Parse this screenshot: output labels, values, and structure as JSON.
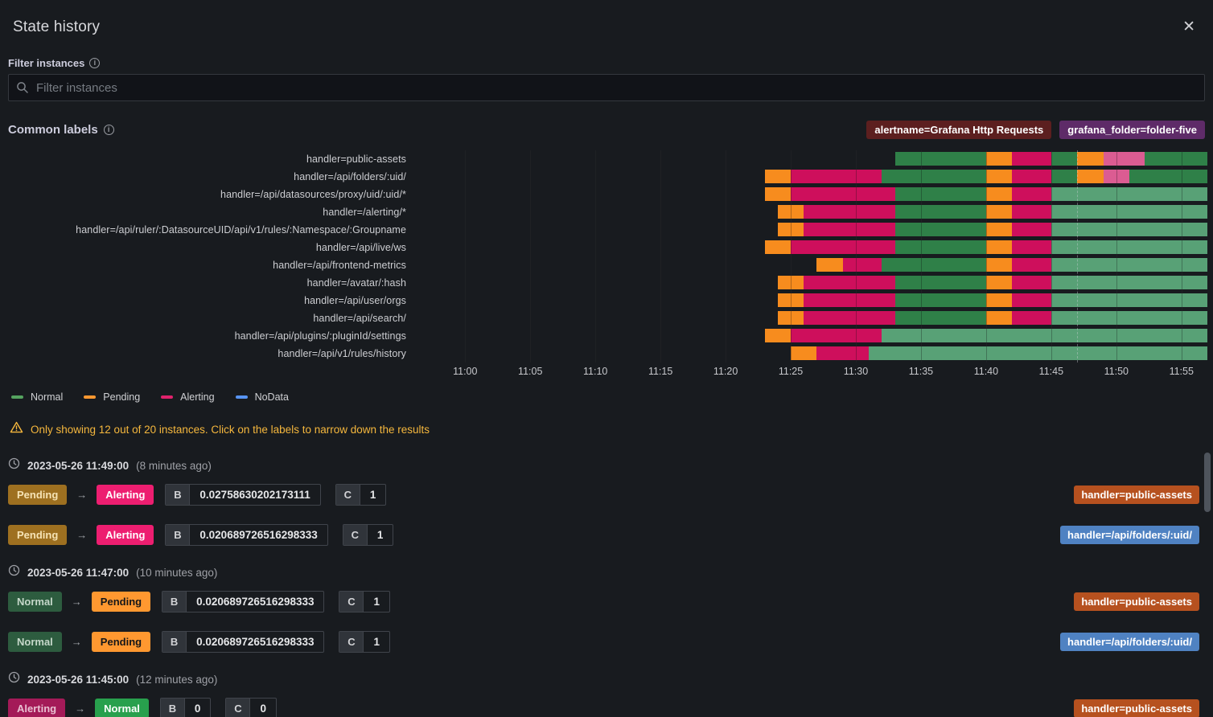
{
  "header": {
    "title": "State history",
    "close_glyph": "✕"
  },
  "filter": {
    "label": "Filter instances",
    "placeholder": "Filter instances"
  },
  "common_labels": {
    "label": "Common labels",
    "badges": [
      {
        "text": "alertname=Grafana Http Requests",
        "bg": "#5C1F1F"
      },
      {
        "text": "grafana_folder=folder-five",
        "bg": "#5E2B68"
      }
    ]
  },
  "chart_data": {
    "type": "state-timeline",
    "x_base_time": "11:00",
    "x_domain_minutes": [
      -3.6,
      57.3
    ],
    "grid": true,
    "marker_minute": 47.0,
    "ticks": [
      {
        "m": 0,
        "label": "11:00"
      },
      {
        "m": 5,
        "label": "11:05"
      },
      {
        "m": 10,
        "label": "11:10"
      },
      {
        "m": 15,
        "label": "11:15"
      },
      {
        "m": 20,
        "label": "11:20"
      },
      {
        "m": 25,
        "label": "11:25"
      },
      {
        "m": 30,
        "label": "11:30"
      },
      {
        "m": 35,
        "label": "11:35"
      },
      {
        "m": 40,
        "label": "11:40"
      },
      {
        "m": 45,
        "label": "11:45"
      },
      {
        "m": 50,
        "label": "11:50"
      },
      {
        "m": 55,
        "label": "11:55"
      }
    ],
    "states": {
      "normal": {
        "label": "Normal",
        "color": "#2F8048"
      },
      "normal_light": {
        "label": "Normal",
        "color": "#58A176"
      },
      "pending": {
        "label": "Pending",
        "color": "#F78C1E"
      },
      "alerting": {
        "label": "Alerting",
        "color": "#CE0F5C"
      },
      "alerting_light": {
        "label": "Alerting",
        "color": "#DB5C92"
      },
      "nodata": {
        "label": "NoData",
        "color": "#5794F2"
      }
    },
    "rows": [
      {
        "label": "handler=public-assets",
        "segments": [
          [
            33,
            40,
            "normal"
          ],
          [
            40,
            42,
            "pending"
          ],
          [
            42,
            45,
            "alerting"
          ],
          [
            45,
            47,
            "normal"
          ],
          [
            47,
            49,
            "pending"
          ],
          [
            49,
            52.2,
            "alerting_light"
          ],
          [
            52.2,
            57,
            "normal"
          ]
        ]
      },
      {
        "label": "handler=/api/folders/:uid/",
        "segments": [
          [
            23,
            25,
            "pending"
          ],
          [
            25,
            32,
            "alerting"
          ],
          [
            32,
            40,
            "normal"
          ],
          [
            40,
            42,
            "pending"
          ],
          [
            42,
            45,
            "alerting"
          ],
          [
            45,
            47,
            "normal"
          ],
          [
            47,
            49,
            "pending"
          ],
          [
            49,
            51,
            "alerting_light"
          ],
          [
            51,
            57,
            "normal"
          ]
        ]
      },
      {
        "label": "handler=/api/datasources/proxy/uid/:uid/*",
        "segments": [
          [
            23,
            25,
            "pending"
          ],
          [
            25,
            33,
            "alerting"
          ],
          [
            33,
            40,
            "normal"
          ],
          [
            40,
            42,
            "pending"
          ],
          [
            42,
            45,
            "alerting"
          ],
          [
            45,
            57,
            "normal_light"
          ]
        ]
      },
      {
        "label": "handler=/alerting/*",
        "segments": [
          [
            24,
            26,
            "pending"
          ],
          [
            26,
            33,
            "alerting"
          ],
          [
            33,
            40,
            "normal"
          ],
          [
            40,
            42,
            "pending"
          ],
          [
            42,
            45,
            "alerting"
          ],
          [
            45,
            57,
            "normal_light"
          ]
        ]
      },
      {
        "label": "handler=/api/ruler/:DatasourceUID/api/v1/rules/:Namespace/:Groupname",
        "segments": [
          [
            24,
            26,
            "pending"
          ],
          [
            26,
            33,
            "alerting"
          ],
          [
            33,
            40,
            "normal"
          ],
          [
            40,
            42,
            "pending"
          ],
          [
            42,
            45,
            "alerting"
          ],
          [
            45,
            57,
            "normal_light"
          ]
        ]
      },
      {
        "label": "handler=/api/live/ws",
        "segments": [
          [
            23,
            25,
            "pending"
          ],
          [
            25,
            33,
            "alerting"
          ],
          [
            33,
            40,
            "normal"
          ],
          [
            40,
            42,
            "pending"
          ],
          [
            42,
            45,
            "alerting"
          ],
          [
            45,
            57,
            "normal_light"
          ]
        ]
      },
      {
        "label": "handler=/api/frontend-metrics",
        "segments": [
          [
            27,
            29,
            "pending"
          ],
          [
            29,
            32,
            "alerting"
          ],
          [
            32,
            40,
            "normal"
          ],
          [
            40,
            42,
            "pending"
          ],
          [
            42,
            45,
            "alerting"
          ],
          [
            45,
            57,
            "normal_light"
          ]
        ]
      },
      {
        "label": "handler=/avatar/:hash",
        "segments": [
          [
            24,
            26,
            "pending"
          ],
          [
            26,
            33,
            "alerting"
          ],
          [
            33,
            40,
            "normal"
          ],
          [
            40,
            42,
            "pending"
          ],
          [
            42,
            45,
            "alerting"
          ],
          [
            45,
            57,
            "normal_light"
          ]
        ]
      },
      {
        "label": "handler=/api/user/orgs",
        "segments": [
          [
            24,
            26,
            "pending"
          ],
          [
            26,
            33,
            "alerting"
          ],
          [
            33,
            40,
            "normal"
          ],
          [
            40,
            42,
            "pending"
          ],
          [
            42,
            45,
            "alerting"
          ],
          [
            45,
            57,
            "normal_light"
          ]
        ]
      },
      {
        "label": "handler=/api/search/",
        "segments": [
          [
            24,
            26,
            "pending"
          ],
          [
            26,
            33,
            "alerting"
          ],
          [
            33,
            40,
            "normal"
          ],
          [
            40,
            42,
            "pending"
          ],
          [
            42,
            45,
            "alerting"
          ],
          [
            45,
            57,
            "normal_light"
          ]
        ]
      },
      {
        "label": "handler=/api/plugins/:pluginId/settings",
        "segments": [
          [
            23,
            25,
            "pending"
          ],
          [
            25,
            32,
            "alerting"
          ],
          [
            32,
            57,
            "normal_light"
          ]
        ]
      },
      {
        "label": "handler=/api/v1/rules/history",
        "segments": [
          [
            25,
            27,
            "pending"
          ],
          [
            27,
            31,
            "alerting"
          ],
          [
            31,
            57,
            "normal_light"
          ]
        ]
      }
    ]
  },
  "legend": [
    {
      "label": "Normal",
      "color": "#55A35F"
    },
    {
      "label": "Pending",
      "color": "#FF9830"
    },
    {
      "label": "Alerting",
      "color": "#E0226C"
    },
    {
      "label": "NoData",
      "color": "#5794F2"
    }
  ],
  "warning": {
    "text": "Only showing 12 out of 20 instances. Click on the labels to narrow down the results"
  },
  "history": {
    "state_badge_styles": {
      "from": {
        "Pending": {
          "bg": "#9E7020",
          "fg": "#F6E3B5"
        },
        "Normal": {
          "bg": "#2D5C3F",
          "fg": "#C6D8CA"
        },
        "Alerting": {
          "bg": "#A41A58",
          "fg": "#E9C0D2"
        }
      },
      "to": {
        "Alerting": {
          "bg": "#ED1E70",
          "fg": "#FFFFFF"
        },
        "Pending": {
          "bg": "#FF9830",
          "fg": "#141619"
        },
        "Normal": {
          "bg": "#28A04D",
          "fg": "#FFFFFF"
        }
      }
    },
    "groups": [
      {
        "timestamp": "2023-05-26 11:49:00",
        "relative": "(8 minutes ago)",
        "events": [
          {
            "from": "Pending",
            "to": "Alerting",
            "values": [
              [
                "B",
                "0.02758630202173111"
              ],
              [
                "C",
                "1"
              ]
            ],
            "instance": "handler=public-assets",
            "instance_bg": "#B6511F"
          },
          {
            "from": "Pending",
            "to": "Alerting",
            "values": [
              [
                "B",
                "0.020689726516298333"
              ],
              [
                "C",
                "1"
              ]
            ],
            "instance": "handler=/api/folders/:uid/",
            "instance_bg": "#4F82C2"
          }
        ]
      },
      {
        "timestamp": "2023-05-26 11:47:00",
        "relative": "(10 minutes ago)",
        "events": [
          {
            "from": "Normal",
            "to": "Pending",
            "values": [
              [
                "B",
                "0.020689726516298333"
              ],
              [
                "C",
                "1"
              ]
            ],
            "instance": "handler=public-assets",
            "instance_bg": "#B6511F"
          },
          {
            "from": "Normal",
            "to": "Pending",
            "values": [
              [
                "B",
                "0.020689726516298333"
              ],
              [
                "C",
                "1"
              ]
            ],
            "instance": "handler=/api/folders/:uid/",
            "instance_bg": "#4F82C2"
          }
        ]
      },
      {
        "timestamp": "2023-05-26 11:45:00",
        "relative": "(12 minutes ago)",
        "events": [
          {
            "from": "Alerting",
            "to": "Normal",
            "values": [
              [
                "B",
                "0"
              ],
              [
                "C",
                "0"
              ]
            ],
            "instance": "handler=public-assets",
            "instance_bg": "#B6511F"
          }
        ]
      }
    ]
  }
}
